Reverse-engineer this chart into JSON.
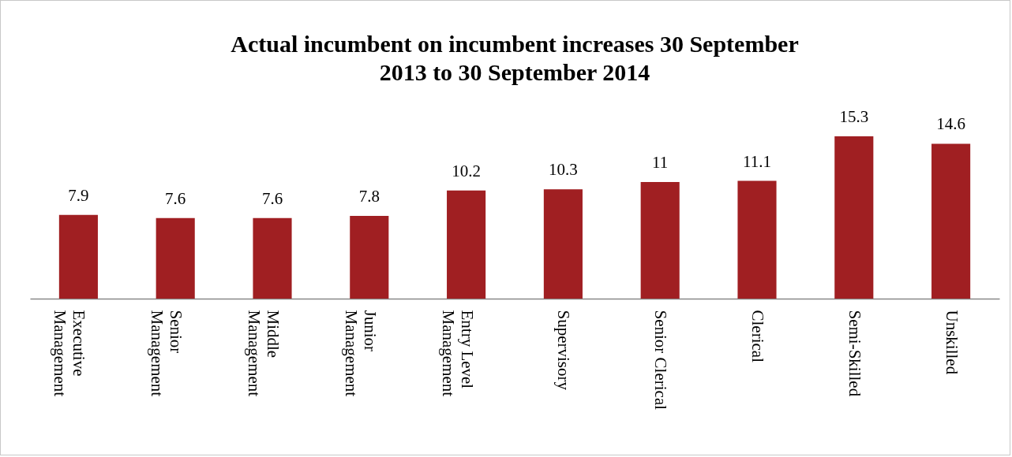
{
  "chart_data": {
    "type": "bar",
    "title": "Actual incumbent on incumbent increases 30 September 2013 to 30 September 2014",
    "categories": [
      "Executive Management",
      "Senior Management",
      "Middle Management",
      "Junior Management",
      "Entry Level Management",
      "Supervisory",
      "Senior Clerical",
      "Clerical",
      "Semi-Skilled",
      "Unskilled"
    ],
    "values": [
      7.9,
      7.6,
      7.6,
      7.8,
      10.2,
      10.3,
      11,
      11.1,
      15.3,
      14.6
    ],
    "color": "#a01f22",
    "data_labels": true,
    "tick_labels": "x"
  }
}
